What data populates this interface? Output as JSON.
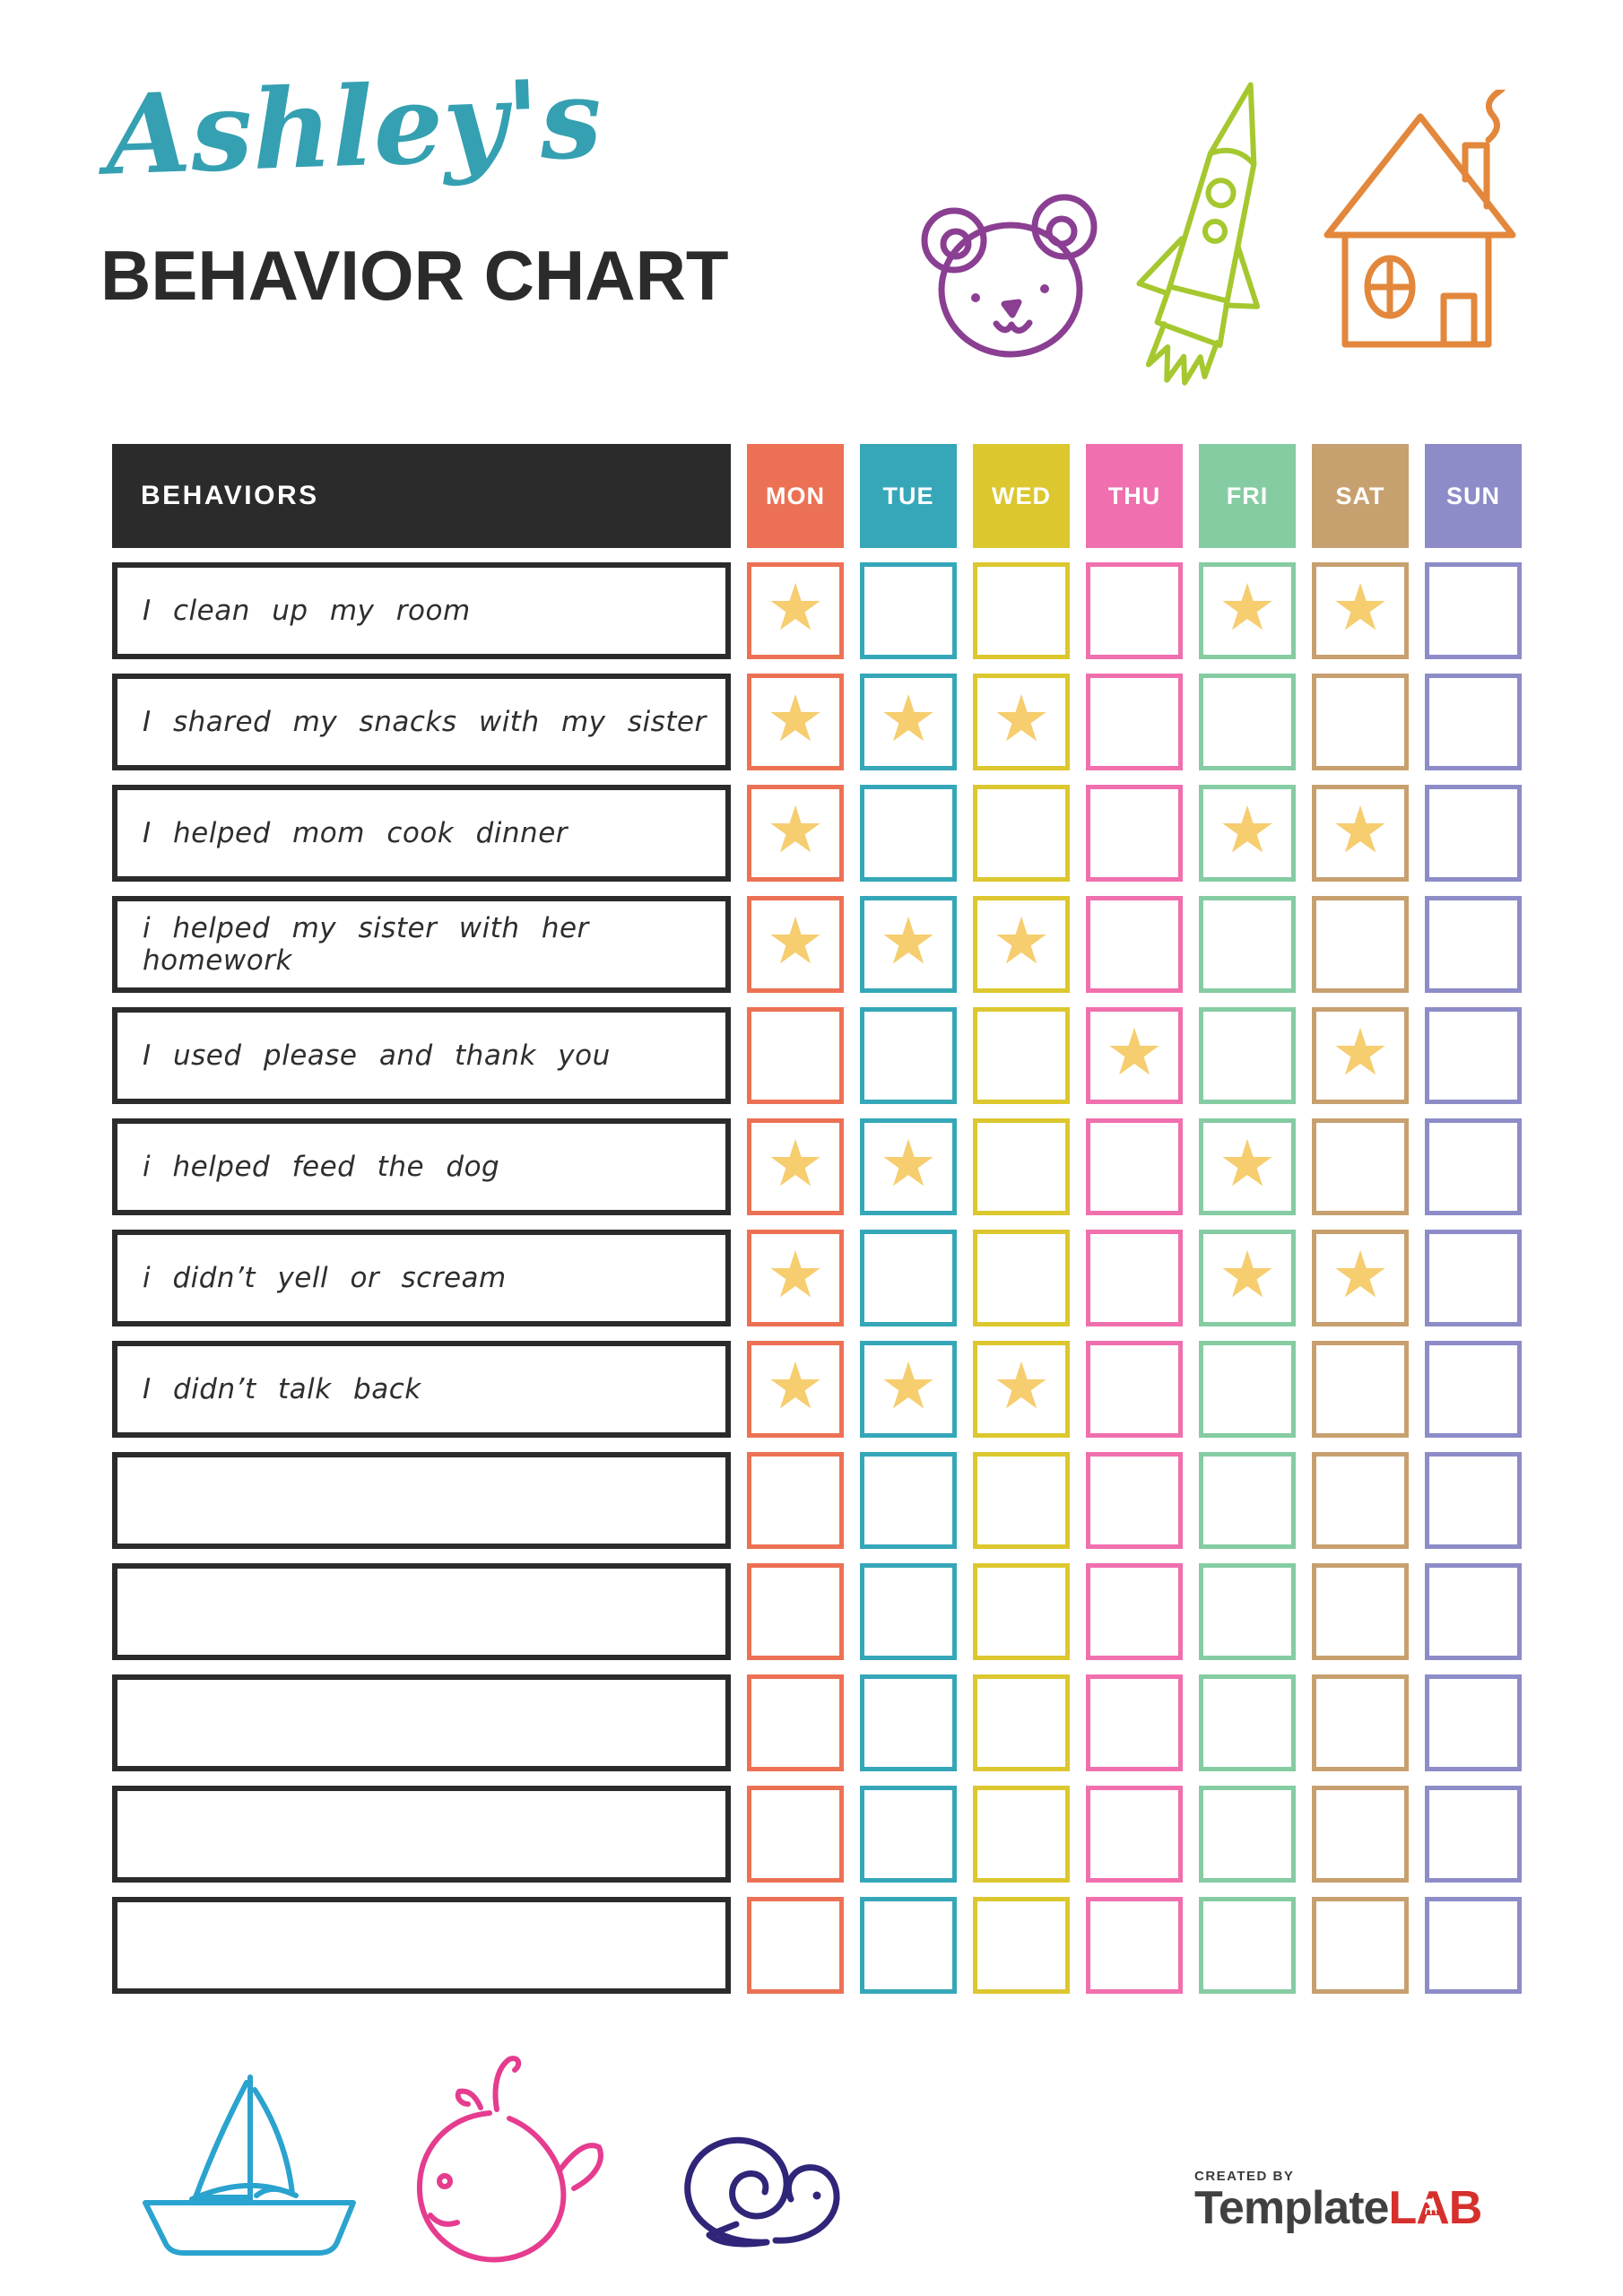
{
  "header": {
    "script_title": "Ashley's",
    "main_title": "BEHAVIOR CHART"
  },
  "table": {
    "behaviors_header": "BEHAVIORS",
    "days": [
      {
        "label": "MON",
        "color": "#EC7154"
      },
      {
        "label": "TUE",
        "color": "#35A7B8"
      },
      {
        "label": "WED",
        "color": "#DCC72F"
      },
      {
        "label": "THU",
        "color": "#F06FAE"
      },
      {
        "label": "FRI",
        "color": "#85CCA2"
      },
      {
        "label": "SAT",
        "color": "#C7A06F"
      },
      {
        "label": "SUN",
        "color": "#8D8CC8"
      }
    ],
    "rows": [
      {
        "label": "I clean up my room",
        "cells": [
          1,
          0,
          0,
          0,
          1,
          1,
          0
        ]
      },
      {
        "label": "I shared my snacks with my sister",
        "cells": [
          1,
          1,
          1,
          0,
          0,
          0,
          0
        ]
      },
      {
        "label": "I helped mom cook dinner",
        "cells": [
          1,
          0,
          0,
          0,
          1,
          1,
          0
        ]
      },
      {
        "label": "i helped my sister with her homework",
        "cells": [
          1,
          1,
          1,
          0,
          0,
          0,
          0
        ]
      },
      {
        "label": "I used please and thank you",
        "cells": [
          0,
          0,
          0,
          1,
          0,
          1,
          0
        ]
      },
      {
        "label": "i helped feed the dog",
        "cells": [
          1,
          1,
          0,
          0,
          1,
          0,
          0
        ]
      },
      {
        "label": "i didn’t yell or scream",
        "cells": [
          1,
          0,
          0,
          0,
          1,
          1,
          0
        ]
      },
      {
        "label": "I didn’t talk back",
        "cells": [
          1,
          1,
          1,
          0,
          0,
          0,
          0
        ]
      },
      {
        "label": "",
        "cells": [
          0,
          0,
          0,
          0,
          0,
          0,
          0
        ]
      },
      {
        "label": "",
        "cells": [
          0,
          0,
          0,
          0,
          0,
          0,
          0
        ]
      },
      {
        "label": "",
        "cells": [
          0,
          0,
          0,
          0,
          0,
          0,
          0
        ]
      },
      {
        "label": "",
        "cells": [
          0,
          0,
          0,
          0,
          0,
          0,
          0
        ]
      },
      {
        "label": "",
        "cells": [
          0,
          0,
          0,
          0,
          0,
          0,
          0
        ]
      }
    ]
  },
  "star": {
    "glyph": "★",
    "color": "#F6CD6F"
  },
  "doodles": {
    "colors": {
      "bear": "#8A3F92",
      "rocket": "#A5C82F",
      "house": "#E2873B",
      "sailboat": "#2AA3CF",
      "whale": "#E53C8F",
      "snail": "#2F2579"
    }
  },
  "footer": {
    "created_by": "CREATED BY",
    "brand_template": "Template",
    "brand_lab": "LAB",
    "brand_red": "#D6302C",
    "brand_dark": "#404040"
  }
}
